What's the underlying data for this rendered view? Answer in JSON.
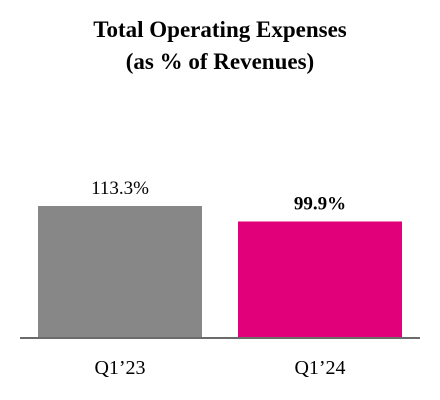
{
  "chart_data": {
    "type": "bar",
    "title_line1": "Total Operating Expenses",
    "title_line2": "(as % of Revenues)",
    "categories": [
      "Q1’23",
      "Q1’24"
    ],
    "values": [
      113.3,
      99.9
    ],
    "value_labels": [
      "113.3%",
      "99.9%"
    ],
    "value_label_bold": [
      false,
      true
    ],
    "colors": [
      "#878787",
      "#e2007a"
    ],
    "axis_color": "#6b6b6b",
    "ylim": [
      0,
      120
    ],
    "grid": false,
    "legend": "none"
  }
}
